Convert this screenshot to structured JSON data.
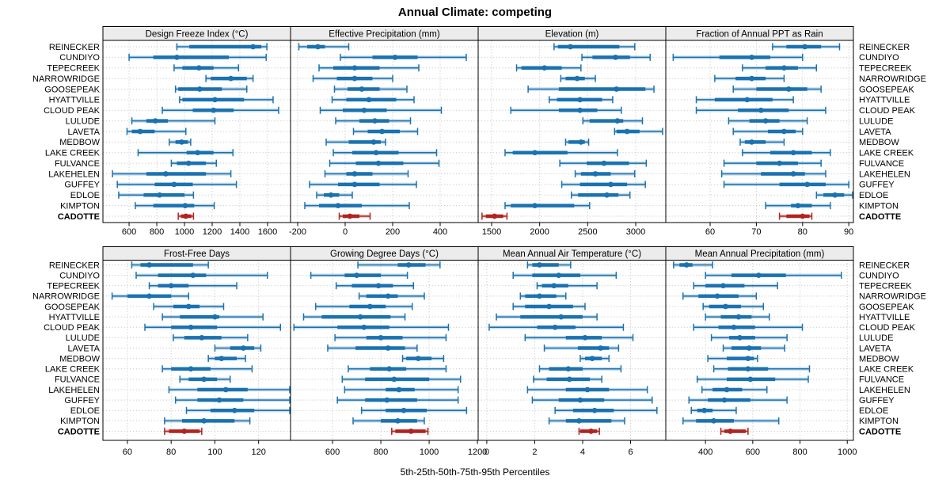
{
  "chart_data": {
    "type": "scatter",
    "subtype": "percentile-interval-dotplot",
    "title": "Annual Climate: competing",
    "xlabel": "5th-25th-50th-75th-95th Percentiles",
    "percentiles": [
      5,
      25,
      50,
      75,
      95
    ],
    "legend_position": "none",
    "grid": "dotted",
    "rows": 2,
    "cols": 4,
    "highlight_site": "CADOTTE",
    "colors": {
      "series_blue": "#1a72b0",
      "highlight_red": "#b02420",
      "grid": "#c9c9c9",
      "strip_bg": "#ececec",
      "border": "#000000"
    },
    "sites": [
      "REINECKER",
      "CUNDIYO",
      "TEPECREEK",
      "NARROWRIDGE",
      "GOOSEPEAK",
      "HYATTVILLE",
      "CLOUD PEAK",
      "LULUDE",
      "LAVETA",
      "MEDBOW",
      "LAKE CREEK",
      "FULVANCE",
      "LAKEHELEN",
      "GUFFEY",
      "EDLOE",
      "KIMPTON",
      "CADOTTE"
    ],
    "panels": [
      {
        "title": "Design Freeze Index (°C)",
        "ticks": [
          600,
          800,
          1000,
          1200,
          1400,
          1600
        ],
        "xmin": 411,
        "xmax": 1766,
        "values": [
          [
            945,
            1035,
            1495,
            1555,
            1595
          ],
          [
            600,
            775,
            945,
            1320,
            1590
          ],
          [
            925,
            985,
            1105,
            1210,
            1390
          ],
          [
            1155,
            1190,
            1335,
            1450,
            1495
          ],
          [
            935,
            955,
            1110,
            1270,
            1450
          ],
          [
            965,
            985,
            1220,
            1430,
            1640
          ],
          [
            840,
            1060,
            1210,
            1355,
            1680
          ],
          [
            620,
            725,
            790,
            880,
            1220
          ],
          [
            585,
            620,
            680,
            785,
            1010
          ],
          [
            890,
            935,
            980,
            1025,
            1045
          ],
          [
            665,
            1015,
            1095,
            1210,
            1350
          ],
          [
            905,
            945,
            1030,
            1155,
            1230
          ],
          [
            480,
            725,
            865,
            1155,
            1335
          ],
          [
            515,
            785,
            925,
            1060,
            1375
          ],
          [
            525,
            705,
            820,
            1000,
            1065
          ],
          [
            645,
            775,
            1005,
            1070,
            1215
          ],
          [
            955,
            975,
            1010,
            1050,
            1065
          ]
        ]
      },
      {
        "title": "Effective Precipitation (mm)",
        "ticks": [
          -200,
          0,
          200,
          400
        ],
        "xmin": -230,
        "xmax": 560,
        "values": [
          [
            -195,
            -160,
            -115,
            -85,
            15
          ],
          [
            -20,
            115,
            210,
            305,
            510
          ],
          [
            -110,
            -50,
            40,
            145,
            310
          ],
          [
            -135,
            -35,
            40,
            115,
            200
          ],
          [
            -45,
            10,
            70,
            145,
            260
          ],
          [
            -55,
            5,
            100,
            215,
            290
          ],
          [
            -105,
            -10,
            80,
            175,
            405
          ],
          [
            -40,
            60,
            125,
            185,
            275
          ],
          [
            35,
            95,
            155,
            230,
            305
          ],
          [
            -80,
            15,
            120,
            150,
            170
          ],
          [
            -50,
            30,
            130,
            225,
            385
          ],
          [
            -65,
            45,
            140,
            245,
            395
          ],
          [
            -85,
            5,
            40,
            115,
            265
          ],
          [
            -150,
            -30,
            40,
            145,
            300
          ],
          [
            -120,
            -90,
            -60,
            -25,
            30
          ],
          [
            -170,
            -110,
            -30,
            70,
            270
          ],
          [
            -25,
            -10,
            20,
            60,
            105
          ]
        ]
      },
      {
        "title": "Elevation (m)",
        "ticks": [
          1500,
          2000,
          2500,
          3000
        ],
        "xmin": 1360,
        "xmax": 3313,
        "values": [
          [
            2150,
            2190,
            2320,
            2830,
            2990
          ],
          [
            2440,
            2550,
            2790,
            2940,
            3150
          ],
          [
            1760,
            1810,
            2050,
            2230,
            2430
          ],
          [
            2220,
            2270,
            2390,
            2470,
            2580
          ],
          [
            1880,
            2200,
            2800,
            3100,
            3190
          ],
          [
            2100,
            2180,
            2420,
            2650,
            2760
          ],
          [
            1700,
            2200,
            2420,
            2600,
            2850
          ],
          [
            2450,
            2520,
            2810,
            2870,
            3070
          ],
          [
            2780,
            2800,
            2910,
            3040,
            3280
          ],
          [
            2270,
            2300,
            2430,
            2470,
            2510
          ],
          [
            1640,
            1720,
            1950,
            2290,
            2810
          ],
          [
            2210,
            2490,
            2670,
            2930,
            3110
          ],
          [
            2370,
            2430,
            2580,
            2740,
            2990
          ],
          [
            2230,
            2420,
            2740,
            2910,
            3100
          ],
          [
            2330,
            2400,
            2700,
            2820,
            2940
          ],
          [
            1640,
            1700,
            1950,
            2360,
            2520
          ],
          [
            1400,
            1440,
            1530,
            1620,
            1660
          ]
        ]
      },
      {
        "title": "Fraction of Annual PPT as Rain",
        "ticks": [
          60,
          70,
          80,
          90
        ],
        "xmin": 50.4,
        "xmax": 91,
        "values": [
          [
            73.5,
            76.5,
            80.5,
            84,
            88
          ],
          [
            52,
            62,
            69,
            73,
            80
          ],
          [
            67,
            72,
            76,
            79,
            83
          ],
          [
            61,
            65.5,
            69,
            72,
            76
          ],
          [
            65,
            70,
            77,
            81,
            84
          ],
          [
            57,
            61,
            68,
            73.5,
            78
          ],
          [
            57,
            66,
            71,
            77,
            85
          ],
          [
            64,
            68.5,
            72,
            75,
            81
          ],
          [
            65,
            72.5,
            76,
            78.5,
            80
          ],
          [
            66.5,
            67.5,
            69,
            72,
            76
          ],
          [
            67,
            73,
            78,
            82,
            86
          ],
          [
            63,
            70,
            75,
            79,
            84
          ],
          [
            62.5,
            71,
            78,
            80.5,
            85
          ],
          [
            63,
            75,
            81,
            85,
            90
          ],
          [
            83,
            84.5,
            87,
            89,
            91
          ],
          [
            72,
            77.5,
            79,
            82,
            86
          ],
          [
            75,
            76.5,
            80,
            81.5,
            82
          ]
        ]
      },
      {
        "title": "Frost-Free Days",
        "ticks": [
          60,
          80,
          100,
          120
        ],
        "xmin": 48.8,
        "xmax": 134.6,
        "values": [
          [
            62,
            66,
            70,
            90,
            97
          ],
          [
            64,
            74,
            90,
            96,
            124
          ],
          [
            70,
            74,
            80,
            88,
            110
          ],
          [
            53,
            60,
            70,
            80,
            88
          ],
          [
            72,
            81,
            88,
            93,
            104
          ],
          [
            76,
            84,
            100,
            102,
            122
          ],
          [
            68,
            80,
            89,
            101,
            130
          ],
          [
            81,
            86,
            94,
            103,
            115
          ],
          [
            100,
            107,
            113,
            118,
            121
          ],
          [
            97,
            100,
            103,
            110,
            114
          ],
          [
            76,
            80,
            89,
            98,
            117
          ],
          [
            84,
            88,
            95,
            101,
            107
          ],
          [
            79,
            92,
            105,
            115,
            140
          ],
          [
            82,
            92,
            102,
            113,
            140
          ],
          [
            87,
            98,
            109,
            118,
            138
          ],
          [
            77,
            85,
            95,
            109,
            116
          ],
          [
            77,
            79,
            86,
            93,
            94
          ]
        ]
      },
      {
        "title": "Growing Degree Days (°C)",
        "ticks": [
          600,
          800,
          1000,
          1200
        ],
        "xmin": 426,
        "xmax": 1203,
        "values": [
          [
            705,
            870,
            915,
            985,
            1045
          ],
          [
            510,
            650,
            700,
            800,
            910
          ],
          [
            615,
            680,
            790,
            850,
            935
          ],
          [
            710,
            740,
            830,
            870,
            980
          ],
          [
            530,
            670,
            755,
            820,
            930
          ],
          [
            480,
            555,
            715,
            840,
            900
          ],
          [
            440,
            620,
            730,
            835,
            1080
          ],
          [
            610,
            740,
            800,
            890,
            1070
          ],
          [
            580,
            695,
            830,
            900,
            950
          ],
          [
            890,
            905,
            955,
            1010,
            1060
          ],
          [
            665,
            755,
            835,
            905,
            1070
          ],
          [
            640,
            735,
            855,
            1000,
            1130
          ],
          [
            650,
            820,
            875,
            940,
            1120
          ],
          [
            620,
            735,
            825,
            950,
            1120
          ],
          [
            720,
            820,
            895,
            990,
            1155
          ],
          [
            685,
            800,
            870,
            950,
            980
          ],
          [
            845,
            860,
            925,
            985,
            995
          ]
        ]
      },
      {
        "title": "Mean Annual Air Temperature (°C)",
        "ticks": [
          0,
          2,
          4,
          6
        ],
        "xmin": -0.36,
        "xmax": 7.47,
        "values": [
          [
            1.7,
            1.9,
            2.2,
            3.0,
            3.5
          ],
          [
            1.1,
            1.9,
            3.0,
            3.9,
            5.4
          ],
          [
            2.1,
            2.3,
            2.8,
            3.4,
            4.6
          ],
          [
            1.4,
            1.6,
            2.2,
            2.9,
            3.3
          ],
          [
            1.1,
            1.6,
            2.6,
            3.6,
            4.1
          ],
          [
            0.4,
            1.4,
            3.1,
            4.0,
            4.6
          ],
          [
            0.1,
            2.1,
            2.85,
            3.7,
            5.7
          ],
          [
            1.6,
            3.3,
            4.1,
            4.8,
            6.1
          ],
          [
            2.4,
            3.8,
            4.75,
            5.1,
            5.5
          ],
          [
            3.9,
            4.1,
            4.4,
            4.8,
            5.1
          ],
          [
            2.2,
            2.6,
            3.4,
            4.0,
            5.6
          ],
          [
            1.95,
            2.5,
            3.45,
            4.3,
            4.8
          ],
          [
            1.7,
            3.3,
            4.2,
            5.1,
            6.7
          ],
          [
            1.9,
            3.0,
            3.9,
            4.9,
            6.9
          ],
          [
            2.85,
            3.6,
            4.5,
            5.3,
            7.1
          ],
          [
            2.6,
            3.3,
            3.85,
            5.2,
            5.75
          ],
          [
            3.85,
            3.9,
            4.35,
            4.6,
            4.7
          ]
        ]
      },
      {
        "title": "Mean Annual Precipitation (mm)",
        "ticks": [
          400,
          600,
          800,
          1000
        ],
        "xmin": 232,
        "xmax": 1026,
        "values": [
          [
            265,
            290,
            320,
            345,
            430
          ],
          [
            400,
            510,
            625,
            740,
            975
          ],
          [
            350,
            400,
            475,
            565,
            705
          ],
          [
            305,
            370,
            450,
            540,
            615
          ],
          [
            390,
            415,
            485,
            550,
            645
          ],
          [
            400,
            465,
            540,
            595,
            670
          ],
          [
            350,
            455,
            520,
            610,
            810
          ],
          [
            425,
            500,
            545,
            610,
            745
          ],
          [
            475,
            510,
            585,
            635,
            735
          ],
          [
            410,
            490,
            580,
            605,
            620
          ],
          [
            435,
            495,
            580,
            665,
            840
          ],
          [
            365,
            490,
            590,
            695,
            835
          ],
          [
            385,
            430,
            490,
            555,
            660
          ],
          [
            330,
            410,
            480,
            590,
            745
          ],
          [
            340,
            365,
            395,
            430,
            530
          ],
          [
            305,
            360,
            435,
            520,
            710
          ],
          [
            465,
            480,
            505,
            570,
            580
          ]
        ]
      }
    ]
  }
}
